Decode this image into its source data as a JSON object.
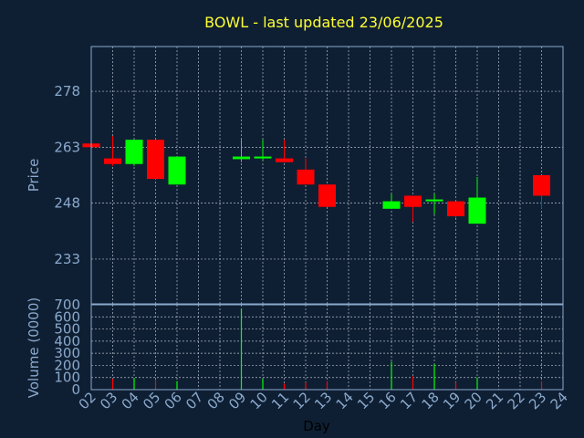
{
  "chart_data": {
    "type": "candlestick",
    "title": "BOWL - last updated 23/06/2025",
    "xlabel": "Day",
    "price": {
      "ylabel": "Price",
      "ylim": [
        221,
        290
      ],
      "yticks": [
        "233",
        "248",
        "263",
        "278"
      ],
      "ytick_values": [
        233,
        248,
        263,
        278
      ]
    },
    "volume": {
      "ylabel": "Volume (0000)",
      "ylim": [
        0,
        700
      ],
      "yticks": [
        "0",
        "100",
        "200",
        "300",
        "400",
        "500",
        "600",
        "700"
      ],
      "ytick_values": [
        0,
        100,
        200,
        300,
        400,
        500,
        600,
        700
      ]
    },
    "xlim": [
      2,
      24
    ],
    "xticks": [
      "02",
      "03",
      "04",
      "05",
      "06",
      "07",
      "08",
      "09",
      "10",
      "11",
      "12",
      "13",
      "14",
      "15",
      "16",
      "17",
      "18",
      "19",
      "20",
      "21",
      "22",
      "23",
      "24"
    ],
    "up_color": "#00ff00",
    "down_color": "#ff0000",
    "grid": true,
    "candles": [
      {
        "day": "02",
        "open": 264.0,
        "high": 264.0,
        "low": 263.0,
        "close": 263.0,
        "volume": 0
      },
      {
        "day": "03",
        "open": 260.0,
        "high": 266.0,
        "low": 258.0,
        "close": 258.5,
        "volume": 90
      },
      {
        "day": "04",
        "open": 258.5,
        "high": 265.0,
        "low": 258.0,
        "close": 265.0,
        "volume": 95
      },
      {
        "day": "05",
        "open": 265.0,
        "high": 265.0,
        "low": 254.5,
        "close": 254.5,
        "volume": 80
      },
      {
        "day": "06",
        "open": 253.0,
        "high": 260.5,
        "low": 253.0,
        "close": 260.5,
        "volume": 70
      },
      {
        "day": "09",
        "open": 259.8,
        "high": 265.0,
        "low": 259.0,
        "close": 260.5,
        "volume": 670
      },
      {
        "day": "10",
        "open": 260.0,
        "high": 265.0,
        "low": 259.5,
        "close": 260.5,
        "volume": 90
      },
      {
        "day": "11",
        "open": 260.0,
        "high": 265.0,
        "low": 259.0,
        "close": 259.0,
        "volume": 50
      },
      {
        "day": "12",
        "open": 257.0,
        "high": 260.0,
        "low": 253.0,
        "close": 253.0,
        "volume": 60
      },
      {
        "day": "13",
        "open": 253.0,
        "high": 253.0,
        "low": 247.0,
        "close": 247.0,
        "volume": 70
      },
      {
        "day": "16",
        "open": 246.5,
        "high": 250.5,
        "low": 246.5,
        "close": 248.5,
        "volume": 230
      },
      {
        "day": "17",
        "open": 250.0,
        "high": 250.0,
        "low": 243.0,
        "close": 247.0,
        "volume": 110
      },
      {
        "day": "18",
        "open": 248.5,
        "high": 250.5,
        "low": 245.0,
        "close": 249.0,
        "volume": 210
      },
      {
        "day": "19",
        "open": 248.5,
        "high": 248.5,
        "low": 244.0,
        "close": 244.5,
        "volume": 60
      },
      {
        "day": "20",
        "open": 242.5,
        "high": 255.0,
        "low": 242.5,
        "close": 249.5,
        "volume": 100
      },
      {
        "day": "23",
        "open": 255.5,
        "high": 255.5,
        "low": 246.5,
        "close": 250.0,
        "volume": 70
      }
    ]
  }
}
